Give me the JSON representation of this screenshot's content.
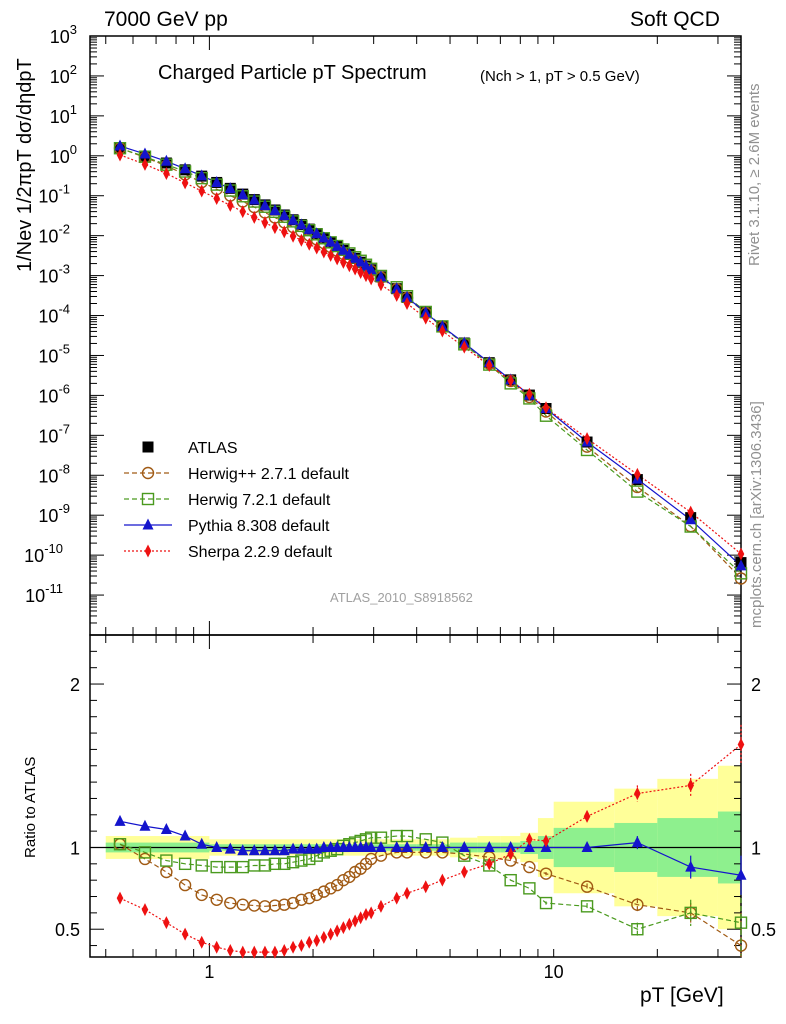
{
  "header": {
    "left": "7000 GeV pp",
    "right": "Soft QCD"
  },
  "side_labels": {
    "rivet": "Rivet 3.1.10, ≥ 2.6M events",
    "mcplots": "mcplots.cern.ch [arXiv:1306.3436]"
  },
  "watermark": "ATLAS_2010_S8918562",
  "chart_data": [
    {
      "type": "scatter",
      "title": "Charged Particle pT Spectrum",
      "subtitle": "(Nch > 1, pT > 0.5 GeV)",
      "ylabel": "1/Nev 1/2πpT dσ/dηdpT",
      "xscale": "log",
      "yscale": "log",
      "xlim": [
        0.45,
        35
      ],
      "ylim": [
        1e-12,
        1000
      ],
      "legend_position": "bottom-left",
      "x": [
        0.55,
        0.65,
        0.75,
        0.85,
        0.95,
        1.05,
        1.15,
        1.25,
        1.35,
        1.45,
        1.55,
        1.65,
        1.75,
        1.85,
        1.95,
        2.05,
        2.15,
        2.25,
        2.35,
        2.45,
        2.55,
        2.65,
        2.75,
        2.85,
        2.95,
        3.15,
        3.5,
        3.75,
        4.25,
        4.75,
        5.5,
        6.5,
        7.5,
        8.5,
        9.5,
        12.5,
        17.5,
        25,
        35
      ],
      "series": [
        {
          "name": "ATLAS",
          "color": "#000000",
          "marker": "square-filled",
          "line": "none",
          "values": [
            1.52,
            0.98,
            0.66,
            0.445,
            0.31,
            0.215,
            0.153,
            0.11,
            0.08,
            0.059,
            0.044,
            0.033,
            0.025,
            0.019,
            0.0146,
            0.0113,
            0.0088,
            0.0069,
            0.0054,
            0.0043,
            0.0034,
            0.0027,
            0.00217,
            0.00174,
            0.0014,
            0.00093,
            0.00047,
            0.000285,
            0.000118,
            5.3e-05,
            2.05e-05,
            6.6e-06,
            2.45e-06,
            1.02e-06,
            4.7e-07,
            6.8e-08,
            7.8e-09,
            8.7e-10,
            6.5e-11
          ]
        },
        {
          "name": "Herwig++ 2.7.1 default",
          "color": "#a05a14",
          "marker": "circle-open",
          "line": "dashed",
          "values": [
            1.55,
            0.91,
            0.56,
            0.34,
            0.219,
            0.146,
            0.101,
            0.072,
            0.052,
            0.038,
            0.0285,
            0.0215,
            0.0165,
            0.0129,
            0.0101,
            0.0081,
            0.0065,
            0.0052,
            0.0042,
            0.0035,
            0.0028,
            0.00232,
            0.0019,
            0.00158,
            0.00131,
            0.00089,
            0.000455,
            0.000275,
            0.000115,
            5.15e-05,
            1.96e-05,
            6.2e-06,
            2.3e-06,
            9.1e-07,
            3.95e-07,
            5.2e-08,
            5.1e-09,
            5.3e-10,
            2.6e-11
          ]
        },
        {
          "name": "Herwig 7.2.1 default",
          "color": "#4a9a1e",
          "marker": "square-open",
          "line": "dashed",
          "values": [
            1.55,
            0.95,
            0.6,
            0.404,
            0.276,
            0.19,
            0.135,
            0.097,
            0.0715,
            0.053,
            0.0396,
            0.0298,
            0.0228,
            0.0176,
            0.0137,
            0.0108,
            0.0086,
            0.0068,
            0.0055,
            0.0045,
            0.0036,
            0.00288,
            0.00235,
            0.00187,
            0.00148,
            0.00098,
            0.00051,
            0.000305,
            0.000123,
            5.35e-05,
            1.9e-05,
            5.9e-06,
            2e-06,
            8.4e-07,
            3.1e-07,
            4.3e-08,
            3.9e-09,
            5.2e-10,
            3.5e-11
          ]
        },
        {
          "name": "Pythia 8.308 default",
          "color": "#1414cc",
          "marker": "triangle-filled",
          "line": "solid",
          "values": [
            1.76,
            1.11,
            0.73,
            0.475,
            0.315,
            0.215,
            0.151,
            0.106,
            0.078,
            0.057,
            0.0426,
            0.032,
            0.0244,
            0.0186,
            0.0144,
            0.0112,
            0.0088,
            0.0069,
            0.0054,
            0.0043,
            0.0034,
            0.0027,
            0.00217,
            0.00174,
            0.0014,
            0.00093,
            0.00047,
            0.000285,
            0.000118,
            5.3e-05,
            2.05e-05,
            6.6e-06,
            2.45e-06,
            1.01e-06,
            4.7e-07,
            6.8e-08,
            8e-09,
            7.7e-10,
            5.4e-11
          ]
        },
        {
          "name": "Sherpa 2.2.9 default",
          "color": "#ee1111",
          "marker": "diamond-filled",
          "line": "dotted",
          "values": [
            1.05,
            0.61,
            0.36,
            0.21,
            0.131,
            0.085,
            0.0575,
            0.04,
            0.0288,
            0.0212,
            0.0159,
            0.0124,
            0.0097,
            0.0077,
            0.0061,
            0.0049,
            0.0039,
            0.0032,
            0.00262,
            0.00214,
            0.00176,
            0.00146,
            0.0012,
            0.001,
            0.00083,
            0.00059,
            0.00032,
            0.0002,
            8.6e-05,
            4.1e-05,
            1.62e-05,
            5.6e-06,
            2.35e-06,
            1.07e-06,
            4.9e-07,
            8.3e-08,
            1.05e-08,
            1.19e-09,
            1.07e-10
          ]
        }
      ]
    },
    {
      "type": "line",
      "ylabel": "Ratio to ATLAS",
      "xlabel": "pT [GeV]",
      "xscale": "log",
      "xlim": [
        0.45,
        35
      ],
      "ylim": [
        0.33,
        2.3
      ],
      "yticks": [
        "0.5",
        "1",
        "2"
      ],
      "xticks": [
        "1",
        "10"
      ],
      "reference_line": 1,
      "uncertainty_bands": {
        "inner_color": "#8ef08e",
        "outer_color": "#ffff99",
        "x_edges": [
          0.5,
          1,
          4,
          5,
          6,
          7,
          8,
          9,
          10,
          15,
          20,
          30,
          40
        ],
        "inner": [
          0.03,
          0.02,
          0.02,
          0.03,
          0.03,
          0.03,
          0.04,
          0.07,
          0.12,
          0.15,
          0.18,
          0.22
        ],
        "outer": [
          0.07,
          0.05,
          0.05,
          0.06,
          0.07,
          0.07,
          0.09,
          0.18,
          0.28,
          0.36,
          0.42,
          0.5
        ]
      },
      "x": [
        0.55,
        0.65,
        0.75,
        0.85,
        0.95,
        1.05,
        1.15,
        1.25,
        1.35,
        1.45,
        1.55,
        1.65,
        1.75,
        1.85,
        1.95,
        2.05,
        2.15,
        2.25,
        2.35,
        2.45,
        2.55,
        2.65,
        2.75,
        2.85,
        2.95,
        3.15,
        3.5,
        3.75,
        4.25,
        4.75,
        5.5,
        6.5,
        7.5,
        8.5,
        9.5,
        12.5,
        17.5,
        25,
        35
      ],
      "series": [
        {
          "name": "Herwig++ 2.7.1 default",
          "color": "#a05a14",
          "marker": "circle-open",
          "line": "dashed",
          "values": [
            1.02,
            0.93,
            0.85,
            0.77,
            0.71,
            0.68,
            0.66,
            0.65,
            0.645,
            0.64,
            0.645,
            0.65,
            0.66,
            0.68,
            0.69,
            0.71,
            0.73,
            0.75,
            0.77,
            0.8,
            0.82,
            0.85,
            0.87,
            0.9,
            0.93,
            0.95,
            0.97,
            0.97,
            0.97,
            0.97,
            0.96,
            0.94,
            0.92,
            0.88,
            0.84,
            0.76,
            0.65,
            0.6,
            0.4
          ],
          "error": [
            0,
            0,
            0,
            0,
            0,
            0,
            0,
            0,
            0,
            0,
            0,
            0,
            0,
            0,
            0,
            0,
            0,
            0,
            0,
            0,
            0,
            0,
            0,
            0,
            0,
            0,
            0,
            0,
            0,
            0,
            0,
            0,
            0,
            0,
            0.01,
            0.02,
            0.04,
            0.06,
            0.2
          ]
        },
        {
          "name": "Herwig 7.2.1 default",
          "color": "#4a9a1e",
          "marker": "square-open",
          "line": "dashed",
          "values": [
            1.02,
            0.97,
            0.92,
            0.9,
            0.89,
            0.88,
            0.88,
            0.88,
            0.89,
            0.89,
            0.9,
            0.9,
            0.91,
            0.92,
            0.93,
            0.95,
            0.97,
            0.98,
            0.99,
            1.01,
            1.02,
            1.03,
            1.04,
            1.05,
            1.06,
            1.06,
            1.07,
            1.07,
            1.05,
            1.03,
            0.95,
            0.89,
            0.8,
            0.75,
            0.66,
            0.64,
            0.5,
            0.6,
            0.54
          ],
          "error": [
            0,
            0,
            0,
            0,
            0,
            0,
            0,
            0,
            0,
            0,
            0,
            0,
            0,
            0,
            0,
            0,
            0,
            0,
            0,
            0,
            0,
            0,
            0,
            0,
            0,
            0,
            0,
            0,
            0,
            0,
            0,
            0,
            0,
            0,
            0.01,
            0.02,
            0.04,
            0.08,
            0.2
          ]
        },
        {
          "name": "Pythia 8.308 default",
          "color": "#1414cc",
          "marker": "triangle-filled",
          "line": "solid",
          "values": [
            1.16,
            1.13,
            1.11,
            1.07,
            1.02,
            1.0,
            0.99,
            0.98,
            0.98,
            0.98,
            0.98,
            0.98,
            0.99,
            0.99,
            0.99,
            0.99,
            1.0,
            1.0,
            1.0,
            1.0,
            1.0,
            1.0,
            1.0,
            1.0,
            1.0,
            1.0,
            1.0,
            1.0,
            1.0,
            1.0,
            1.0,
            1.0,
            1.0,
            1.0,
            1.0,
            1.0,
            1.03,
            0.88,
            0.83
          ],
          "error": [
            0,
            0,
            0,
            0,
            0,
            0,
            0,
            0,
            0,
            0,
            0,
            0,
            0,
            0,
            0,
            0,
            0,
            0,
            0,
            0,
            0,
            0,
            0,
            0,
            0,
            0,
            0,
            0,
            0,
            0,
            0,
            0,
            0,
            0,
            0,
            0.02,
            0.04,
            0.07,
            0.12
          ]
        },
        {
          "name": "Sherpa 2.2.9 default",
          "color": "#ee1111",
          "marker": "diamond-filled",
          "line": "dotted",
          "values": [
            0.69,
            0.62,
            0.54,
            0.47,
            0.42,
            0.39,
            0.37,
            0.36,
            0.36,
            0.36,
            0.36,
            0.37,
            0.39,
            0.4,
            0.42,
            0.43,
            0.45,
            0.47,
            0.49,
            0.51,
            0.53,
            0.55,
            0.57,
            0.59,
            0.6,
            0.64,
            0.69,
            0.72,
            0.76,
            0.8,
            0.85,
            0.9,
            0.96,
            1.05,
            1.04,
            1.19,
            1.33,
            1.38,
            1.63
          ],
          "error": [
            0,
            0,
            0,
            0,
            0,
            0,
            0,
            0,
            0,
            0,
            0,
            0,
            0,
            0,
            0,
            0,
            0,
            0,
            0,
            0,
            0,
            0,
            0,
            0,
            0,
            0,
            0,
            0,
            0,
            0,
            0,
            0,
            0,
            0.02,
            0.02,
            0.03,
            0.05,
            0.07,
            0.12
          ]
        }
      ]
    }
  ]
}
